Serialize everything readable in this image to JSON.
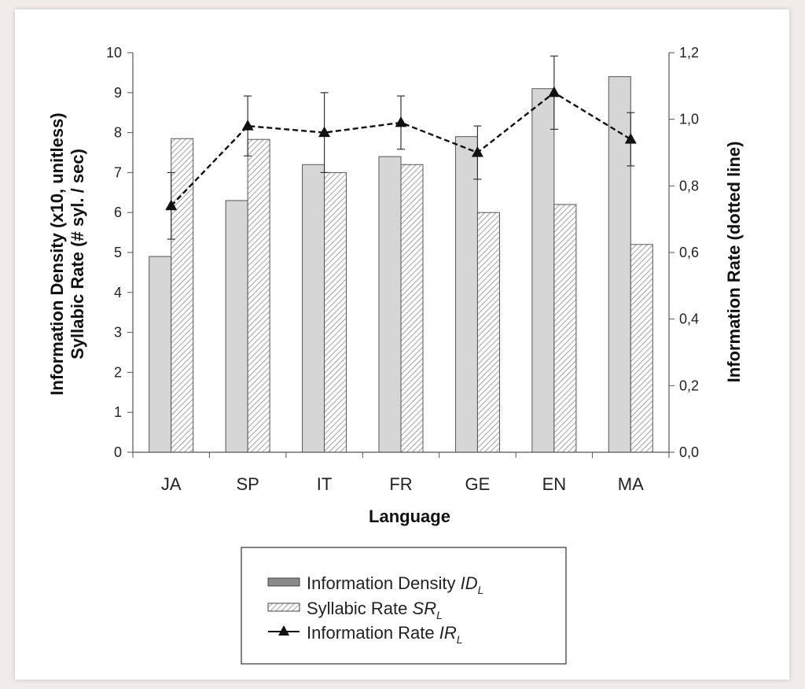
{
  "chart_data": {
    "type": "bar",
    "categories": [
      "JA",
      "SP",
      "IT",
      "FR",
      "GE",
      "EN",
      "MA"
    ],
    "xlabel": "Language",
    "ylabel_left": [
      "Information Density (x10, unitless)",
      "Syllabic Rate (# syl. / sec)"
    ],
    "ylabel_right": "Information Rate (dotted line)",
    "ylim_left": [
      0,
      10
    ],
    "ylim_right": [
      0,
      1.2
    ],
    "yticks_left": [
      "0",
      "1",
      "2",
      "3",
      "4",
      "5",
      "6",
      "7",
      "8",
      "9",
      "10"
    ],
    "yticks_right": [
      "0,0",
      "0,2",
      "0,4",
      "0,6",
      "0,8",
      "1,0",
      "1,2"
    ],
    "grid": false,
    "legend_position": "bottom",
    "series": [
      {
        "name": "Information Density",
        "name_sub": "ID",
        "subscript": "L",
        "kind": "bar",
        "axis": "left",
        "fill": "#d6d6d6",
        "values": [
          4.9,
          6.3,
          7.2,
          7.4,
          7.9,
          9.1,
          9.4
        ]
      },
      {
        "name": "Syllabic Rate",
        "name_sub": "SR",
        "subscript": "L",
        "kind": "bar",
        "axis": "left",
        "fill": "hatched",
        "values": [
          7.85,
          7.83,
          7.0,
          7.2,
          6.0,
          6.2,
          5.2
        ]
      },
      {
        "name": "Information Rate",
        "name_sub": "IR",
        "subscript": "L",
        "kind": "line",
        "line_style": "dashed",
        "marker": "triangle",
        "axis": "right",
        "values": [
          0.74,
          0.98,
          0.96,
          0.99,
          0.9,
          1.08,
          0.94
        ],
        "error": [
          0.1,
          0.09,
          0.12,
          0.08,
          0.08,
          0.11,
          0.08
        ]
      }
    ]
  }
}
